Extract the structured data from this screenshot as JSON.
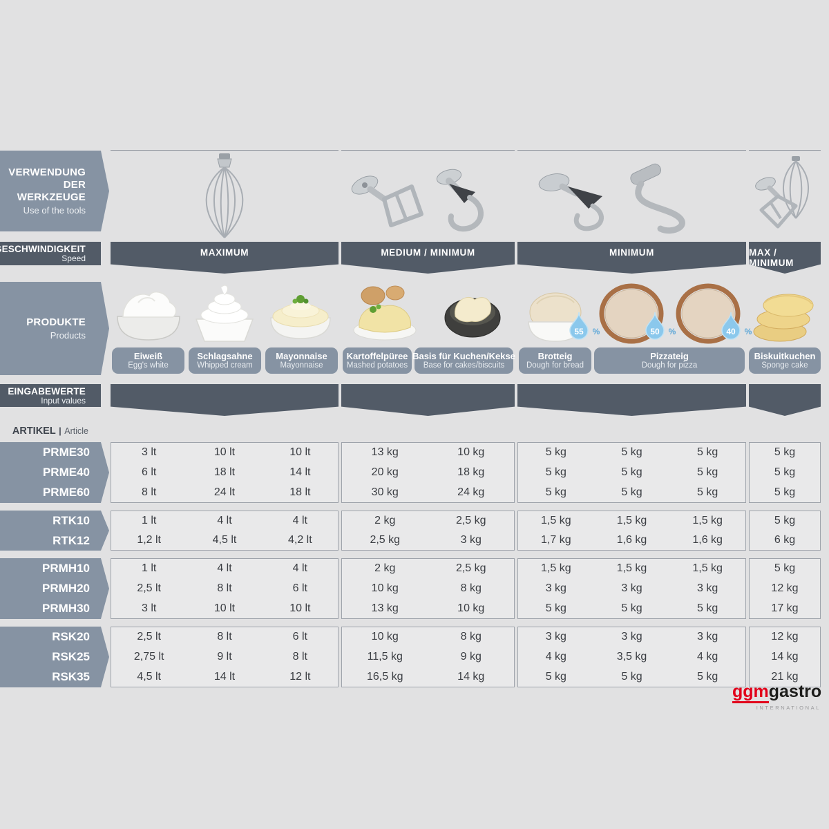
{
  "colors": {
    "background": "#e1e1e2",
    "accent_light": "#8693a3",
    "accent_dark": "#525b67",
    "box_background": "#e9e9ea",
    "box_border": "#9ea3ab",
    "value_text": "#3a3d42",
    "droplet_blue": "#8bc8ec",
    "logo_red": "#e2001a"
  },
  "headers": {
    "tools": {
      "title": "VERWENDUNG DER WERKZEUGE",
      "subtitle": "Use of the tools"
    },
    "speed": {
      "title": "GESCHWINDIGKEIT",
      "subtitle": "Speed"
    },
    "products": {
      "title": "PRODUKTE",
      "subtitle": "Products"
    },
    "input": {
      "title": "EINGABEWERTE",
      "subtitle": "Input values"
    }
  },
  "tool_icons": [
    "balloon-whisk-icon",
    "flat-beater-and-dough-hook-icon",
    "dough-hook-and-spiral-hook-icon",
    "whisk-and-flat-beater-icon"
  ],
  "speed_bars": [
    "MAXIMUM",
    "MEDIUM / MINIMUM",
    "MINIMUM",
    "MAX / MINIMUM"
  ],
  "products": [
    {
      "de": "Eiweiß",
      "en": "Egg's white"
    },
    {
      "de": "Schlagsahne",
      "en": "Whipped cream"
    },
    {
      "de": "Mayonnaise",
      "en": "Mayonnaise"
    },
    {
      "de": "Kartoffelpüree",
      "en": "Mashed potatoes"
    },
    {
      "de": "Basis für Kuchen/Kekse",
      "en": "Base for cakes/biscuits"
    },
    {
      "de": "Brotteig",
      "en": "Dough for bread"
    },
    {
      "de": "Pizzateig",
      "en": "Dough for pizza"
    },
    {
      "de": "Biskuitkuchen",
      "en": "Sponge cake"
    }
  ],
  "water": {
    "bread": "55",
    "pizza_1": "50",
    "pizza_2": "40",
    "percent": "%"
  },
  "article_header": {
    "title": "ARTIKEL",
    "divider": "|",
    "subtitle": "Article"
  },
  "article_groups": [
    {
      "rows": [
        {
          "article": "PRME30",
          "cols": [
            [
              "3 lt",
              "10 lt",
              "10 lt"
            ],
            [
              "13 kg",
              "10 kg"
            ],
            [
              "5 kg",
              "5 kg",
              "5 kg"
            ],
            [
              "5 kg"
            ]
          ]
        },
        {
          "article": "PRME40",
          "cols": [
            [
              "6 lt",
              "18 lt",
              "14 lt"
            ],
            [
              "20 kg",
              "18 kg"
            ],
            [
              "5 kg",
              "5 kg",
              "5 kg"
            ],
            [
              "5 kg"
            ]
          ]
        },
        {
          "article": "PRME60",
          "cols": [
            [
              "8 lt",
              "24 lt",
              "18 lt"
            ],
            [
              "30 kg",
              "24 kg"
            ],
            [
              "5 kg",
              "5 kg",
              "5 kg"
            ],
            [
              "5 kg"
            ]
          ]
        }
      ]
    },
    {
      "rows": [
        {
          "article": "RTK10",
          "cols": [
            [
              "1 lt",
              "4 lt",
              "4 lt"
            ],
            [
              "2 kg",
              "2,5 kg"
            ],
            [
              "1,5 kg",
              "1,5 kg",
              "1,5 kg"
            ],
            [
              "5 kg"
            ]
          ]
        },
        {
          "article": "RTK12",
          "cols": [
            [
              "1,2 lt",
              "4,5 lt",
              "4,2 lt"
            ],
            [
              "2,5 kg",
              "3 kg"
            ],
            [
              "1,7 kg",
              "1,6 kg",
              "1,6 kg"
            ],
            [
              "6 kg"
            ]
          ]
        }
      ]
    },
    {
      "rows": [
        {
          "article": "PRMH10",
          "cols": [
            [
              "1 lt",
              "4 lt",
              "4 lt"
            ],
            [
              "2 kg",
              "2,5 kg"
            ],
            [
              "1,5 kg",
              "1,5 kg",
              "1,5 kg"
            ],
            [
              "5 kg"
            ]
          ]
        },
        {
          "article": "PRMH20",
          "cols": [
            [
              "2,5 lt",
              "8 lt",
              "6 lt"
            ],
            [
              "10 kg",
              "8 kg"
            ],
            [
              "3 kg",
              "3 kg",
              "3 kg"
            ],
            [
              "12 kg"
            ]
          ]
        },
        {
          "article": "PRMH30",
          "cols": [
            [
              "3 lt",
              "10 lt",
              "10 lt"
            ],
            [
              "13 kg",
              "10 kg"
            ],
            [
              "5 kg",
              "5 kg",
              "5 kg"
            ],
            [
              "17 kg"
            ]
          ]
        }
      ]
    },
    {
      "rows": [
        {
          "article": "RSK20",
          "cols": [
            [
              "2,5 lt",
              "8 lt",
              "6 lt"
            ],
            [
              "10 kg",
              "8 kg"
            ],
            [
              "3 kg",
              "3 kg",
              "3 kg"
            ],
            [
              "12 kg"
            ]
          ]
        },
        {
          "article": "RSK25",
          "cols": [
            [
              "2,75 lt",
              "9 lt",
              "8 lt"
            ],
            [
              "11,5 kg",
              "9 kg"
            ],
            [
              "4 kg",
              "3,5 kg",
              "4 kg"
            ],
            [
              "14 kg"
            ]
          ]
        },
        {
          "article": "RSK35",
          "cols": [
            [
              "4,5 lt",
              "14 lt",
              "12 lt"
            ],
            [
              "16,5 kg",
              "14 kg"
            ],
            [
              "5 kg",
              "5 kg",
              "5 kg"
            ],
            [
              "21 kg"
            ]
          ]
        }
      ]
    }
  ],
  "logo": {
    "part1": "ggm",
    "part2": "gastro",
    "tagline": "INTERNATIONAL"
  }
}
